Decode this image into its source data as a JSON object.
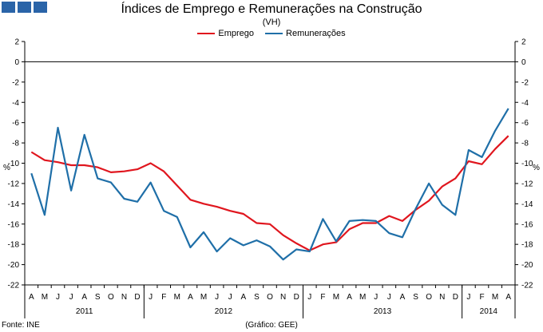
{
  "chart_data": {
    "type": "line",
    "title": "Índices de Emprego e Remunerações na Construção",
    "subtitle": "(VH)",
    "ylabel": "%",
    "ylabel_right": "%",
    "ylim": [
      -22,
      2
    ],
    "yticks": [
      2,
      0,
      -2,
      -4,
      -6,
      -8,
      -10,
      -12,
      -14,
      -16,
      -18,
      -20,
      -22
    ],
    "legend_position": "top-center",
    "grid": false,
    "categories": [
      "A",
      "M",
      "J",
      "J",
      "A",
      "S",
      "O",
      "N",
      "D",
      "J",
      "F",
      "M",
      "A",
      "M",
      "J",
      "J",
      "A",
      "S",
      "O",
      "N",
      "D",
      "J",
      "F",
      "M",
      "A",
      "M",
      "J",
      "J",
      "A",
      "S",
      "O",
      "N",
      "D",
      "J",
      "F",
      "M",
      "A"
    ],
    "years": [
      {
        "label": "2011",
        "start": 0,
        "end": 8
      },
      {
        "label": "2012",
        "start": 9,
        "end": 20
      },
      {
        "label": "2013",
        "start": 21,
        "end": 32
      },
      {
        "label": "2014",
        "start": 33,
        "end": 36
      }
    ],
    "series": [
      {
        "name": "Emprego",
        "color": "#e0161e",
        "values": [
          -8.9,
          -9.7,
          -9.9,
          -10.2,
          -10.2,
          -10.4,
          -10.9,
          -10.8,
          -10.6,
          -10.0,
          -10.8,
          -12.2,
          -13.6,
          -14.0,
          -14.3,
          -14.7,
          -15.0,
          -15.9,
          -16.0,
          -17.1,
          -17.9,
          -18.6,
          -18.0,
          -17.8,
          -16.5,
          -15.9,
          -15.9,
          -15.2,
          -15.7,
          -14.6,
          -13.7,
          -12.3,
          -11.5,
          -9.8,
          -10.1,
          -8.6,
          -7.3
        ]
      },
      {
        "name": "Remunerações",
        "color": "#1f6fa8",
        "values": [
          -11.0,
          -15.1,
          -6.5,
          -12.7,
          -7.2,
          -11.5,
          -11.9,
          -13.5,
          -13.8,
          -11.9,
          -14.7,
          -15.3,
          -18.3,
          -16.8,
          -18.7,
          -17.4,
          -18.1,
          -17.6,
          -18.2,
          -19.5,
          -18.5,
          -18.7,
          -15.5,
          -17.7,
          -15.7,
          -15.6,
          -15.7,
          -16.9,
          -17.3,
          -14.5,
          -12.0,
          -14.1,
          -15.1,
          -8.7,
          -9.4,
          -6.8,
          -4.6
        ]
      }
    ]
  },
  "footer": {
    "source": "Fonte: INE",
    "credit": "(Gráfico: GEE)"
  },
  "colors": {
    "logo": "#2a64a8"
  }
}
